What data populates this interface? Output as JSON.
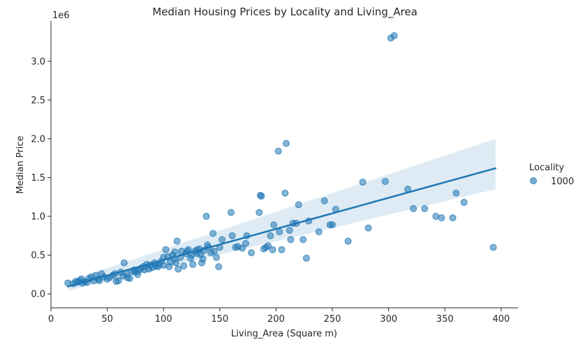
{
  "chart_data": {
    "type": "scatter",
    "title": "Median Housing Prices by Locality and Living_Area",
    "xlabel": "Living_Area (Square m)",
    "ylabel": "Median Price",
    "y_offset_label": "1e6",
    "xlim": [
      0,
      415
    ],
    "ylim": [
      -0.18,
      3.52
    ],
    "x_ticks": [
      0,
      50,
      100,
      150,
      200,
      250,
      300,
      350,
      400
    ],
    "x_tick_labels": [
      "0",
      "50",
      "100",
      "150",
      "200",
      "250",
      "300",
      "350",
      "400"
    ],
    "y_ticks": [
      0.0,
      0.5,
      1.0,
      1.5,
      2.0,
      2.5,
      3.0
    ],
    "y_tick_labels": [
      "0.0",
      "0.5",
      "1.0",
      "1.5",
      "2.0",
      "2.5",
      "3.0"
    ],
    "grid": false,
    "legend": {
      "title": "Locality",
      "placement": "right",
      "entries": [
        "1000"
      ]
    },
    "colors": {
      "points": "#1f77b4",
      "line": "#1f77b4",
      "band": "#1f77b4",
      "axis": "#262626"
    },
    "series": [
      {
        "name": "1000",
        "points": [
          [
            15,
            0.14
          ],
          [
            20,
            0.13
          ],
          [
            22,
            0.16
          ],
          [
            24,
            0.15
          ],
          [
            25,
            0.17
          ],
          [
            27,
            0.19
          ],
          [
            28,
            0.14
          ],
          [
            30,
            0.16
          ],
          [
            32,
            0.15
          ],
          [
            34,
            0.2
          ],
          [
            36,
            0.22
          ],
          [
            38,
            0.17
          ],
          [
            40,
            0.24
          ],
          [
            42,
            0.19
          ],
          [
            43,
            0.17
          ],
          [
            45,
            0.26
          ],
          [
            47,
            0.22
          ],
          [
            50,
            0.19
          ],
          [
            52,
            0.21
          ],
          [
            55,
            0.24
          ],
          [
            57,
            0.26
          ],
          [
            58,
            0.16
          ],
          [
            60,
            0.17
          ],
          [
            62,
            0.28
          ],
          [
            64,
            0.23
          ],
          [
            65,
            0.4
          ],
          [
            67,
            0.26
          ],
          [
            68,
            0.21
          ],
          [
            70,
            0.2
          ],
          [
            72,
            0.29
          ],
          [
            74,
            0.31
          ],
          [
            75,
            0.28
          ],
          [
            77,
            0.25
          ],
          [
            78,
            0.3
          ],
          [
            80,
            0.33
          ],
          [
            82,
            0.35
          ],
          [
            83,
            0.31
          ],
          [
            85,
            0.38
          ],
          [
            87,
            0.32
          ],
          [
            88,
            0.37
          ],
          [
            90,
            0.34
          ],
          [
            92,
            0.4
          ],
          [
            93,
            0.36
          ],
          [
            95,
            0.35
          ],
          [
            96,
            0.38
          ],
          [
            98,
            0.42
          ],
          [
            100,
            0.37
          ],
          [
            100,
            0.47
          ],
          [
            102,
            0.57
          ],
          [
            104,
            0.48
          ],
          [
            105,
            0.35
          ],
          [
            106,
            0.41
          ],
          [
            108,
            0.5
          ],
          [
            110,
            0.54
          ],
          [
            110,
            0.45
          ],
          [
            111,
            0.4
          ],
          [
            112,
            0.68
          ],
          [
            113,
            0.32
          ],
          [
            115,
            0.47
          ],
          [
            116,
            0.55
          ],
          [
            118,
            0.36
          ],
          [
            120,
            0.52
          ],
          [
            121,
            0.55
          ],
          [
            122,
            0.57
          ],
          [
            124,
            0.46
          ],
          [
            125,
            0.5
          ],
          [
            126,
            0.38
          ],
          [
            128,
            0.55
          ],
          [
            130,
            0.57
          ],
          [
            130,
            0.52
          ],
          [
            132,
            0.58
          ],
          [
            133,
            0.51
          ],
          [
            134,
            0.4
          ],
          [
            135,
            0.45
          ],
          [
            136,
            0.56
          ],
          [
            138,
            1.0
          ],
          [
            139,
            0.63
          ],
          [
            140,
            0.6
          ],
          [
            142,
            0.53
          ],
          [
            144,
            0.78
          ],
          [
            145,
            0.55
          ],
          [
            147,
            0.47
          ],
          [
            149,
            0.35
          ],
          [
            150,
            0.6
          ],
          [
            152,
            0.7
          ],
          [
            160,
            1.05
          ],
          [
            161,
            0.75
          ],
          [
            164,
            0.6
          ],
          [
            166,
            0.61
          ],
          [
            170,
            0.59
          ],
          [
            173,
            0.65
          ],
          [
            174,
            0.75
          ],
          [
            178,
            0.53
          ],
          [
            185,
            1.05
          ],
          [
            186,
            1.27
          ],
          [
            187,
            1.26
          ],
          [
            189,
            0.58
          ],
          [
            191,
            0.6
          ],
          [
            193,
            0.62
          ],
          [
            195,
            0.75
          ],
          [
            197,
            0.57
          ],
          [
            198,
            0.89
          ],
          [
            202,
            1.84
          ],
          [
            203,
            0.8
          ],
          [
            205,
            0.57
          ],
          [
            208,
            1.3
          ],
          [
            209,
            1.94
          ],
          [
            212,
            0.82
          ],
          [
            213,
            0.7
          ],
          [
            215,
            0.91
          ],
          [
            218,
            0.91
          ],
          [
            220,
            1.15
          ],
          [
            224,
            0.7
          ],
          [
            227,
            0.46
          ],
          [
            229,
            0.94
          ],
          [
            238,
            0.8
          ],
          [
            243,
            1.2
          ],
          [
            248,
            0.89
          ],
          [
            250,
            0.89
          ],
          [
            253,
            1.09
          ],
          [
            264,
            0.68
          ],
          [
            277,
            1.44
          ],
          [
            282,
            0.85
          ],
          [
            297,
            1.45
          ],
          [
            302,
            3.3
          ],
          [
            305,
            3.33
          ],
          [
            317,
            1.35
          ],
          [
            322,
            1.1
          ],
          [
            332,
            1.1
          ],
          [
            342,
            1.0
          ],
          [
            347,
            0.98
          ],
          [
            357,
            0.98
          ],
          [
            360,
            1.3
          ],
          [
            367,
            1.18
          ],
          [
            393,
            0.6
          ]
        ]
      }
    ],
    "regression": {
      "x": [
        15,
        395
      ],
      "y": [
        0.095,
        1.62
      ],
      "ci_upper": [
        0.165,
        2.0
      ],
      "ci_lower": [
        0.04,
        1.35
      ]
    }
  }
}
